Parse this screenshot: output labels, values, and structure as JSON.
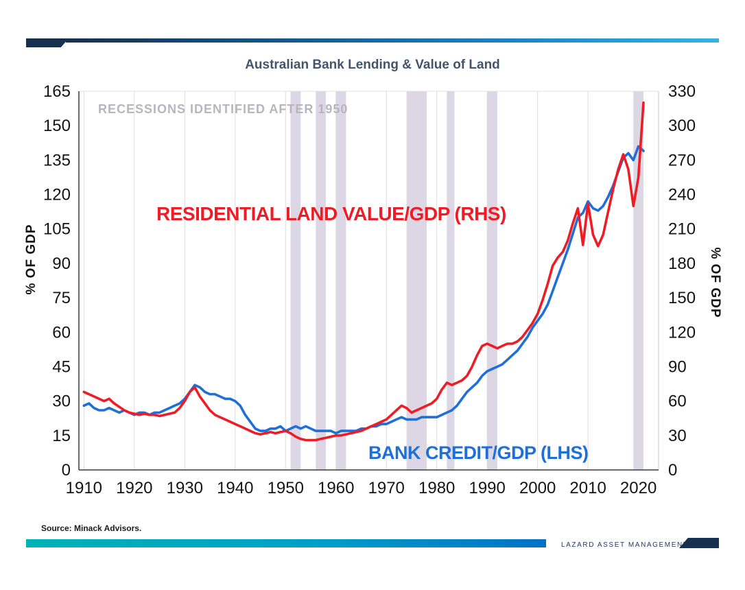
{
  "page": {
    "title": "Australian Bank Lending & Value of Land",
    "source": "Source: Minack Advisors.",
    "brand": "LAZARD ASSET MANAGEMENT"
  },
  "annotations": {
    "recessions": "RECESSIONS IDENTIFIED AFTER 1950"
  },
  "chart_data": {
    "type": "line",
    "title": "Australian Bank Lending & Value of Land",
    "x_range": [
      1909,
      2024
    ],
    "x_ticks": [
      1910,
      1920,
      1930,
      1940,
      1950,
      1960,
      1970,
      1980,
      1990,
      2000,
      2010,
      2020
    ],
    "left_axis": {
      "label": "% OF GDP",
      "range": [
        0,
        165
      ],
      "ticks": [
        165,
        150,
        135,
        120,
        105,
        90,
        75,
        60,
        45,
        30,
        15,
        0
      ]
    },
    "right_axis": {
      "label": "% OF GDP",
      "range": [
        0,
        330
      ],
      "ticks": [
        330,
        300,
        270,
        240,
        210,
        180,
        150,
        120,
        90,
        60,
        30,
        0
      ]
    },
    "grid": "vertical-decades",
    "legend": "inline-labels",
    "band_color": "#ddd6e5",
    "recession_bands": [
      [
        1951,
        1953
      ],
      [
        1956,
        1958
      ],
      [
        1960,
        1962
      ],
      [
        1974,
        1978
      ],
      [
        1982,
        1983.5
      ],
      [
        1990,
        1992
      ],
      [
        2019,
        2021
      ]
    ],
    "series": [
      {
        "name": "BANK CREDIT/GDP (LHS)",
        "axis": "left",
        "color": "#1e6fd8",
        "x_start": 1910,
        "x_step": 1,
        "values": [
          28,
          29,
          27,
          26,
          26,
          27,
          26,
          25,
          26,
          25,
          24,
          25,
          25,
          24,
          25,
          25,
          26,
          27,
          28,
          29,
          31,
          34,
          37,
          36,
          34,
          33,
          33,
          32,
          31,
          31,
          30,
          28,
          24,
          21,
          18,
          17,
          17,
          18,
          18,
          19,
          17,
          18,
          19,
          18,
          19,
          18,
          17,
          17,
          17,
          17,
          16,
          17,
          17,
          17,
          17,
          18,
          18,
          19,
          19,
          20,
          20,
          21,
          22,
          23,
          22,
          22,
          22,
          23,
          23,
          23,
          23,
          24,
          25,
          26,
          28,
          31,
          34,
          36,
          38,
          41,
          43,
          44,
          45,
          46,
          48,
          50,
          52,
          55,
          58,
          62,
          65,
          68,
          72,
          78,
          84,
          90,
          96,
          103,
          110,
          112,
          117,
          114,
          113,
          115,
          119,
          124,
          130,
          136,
          138,
          135,
          141,
          139
        ]
      },
      {
        "name": "RESIDENTIAL LAND VALUE/GDP (RHS)",
        "axis": "right",
        "color": "#ee1c25",
        "x_start": 1910,
        "x_step": 1,
        "values": [
          68,
          66,
          64,
          62,
          60,
          62,
          58,
          55,
          52,
          50,
          49,
          48,
          49,
          48,
          48,
          47,
          48,
          49,
          50,
          54,
          60,
          68,
          72,
          64,
          58,
          52,
          48,
          46,
          44,
          42,
          40,
          38,
          36,
          34,
          32,
          31,
          32,
          33,
          32,
          33,
          34,
          32,
          29,
          27,
          26,
          26,
          26,
          27,
          28,
          29,
          30,
          30,
          31,
          32,
          33,
          34,
          36,
          38,
          40,
          42,
          44,
          48,
          52,
          56,
          54,
          50,
          52,
          54,
          56,
          58,
          62,
          70,
          76,
          74,
          76,
          78,
          82,
          90,
          100,
          108,
          110,
          108,
          106,
          108,
          110,
          110,
          112,
          116,
          122,
          128,
          136,
          148,
          162,
          178,
          185,
          190,
          200,
          215,
          228,
          196,
          232,
          205,
          195,
          205,
          225,
          245,
          262,
          275,
          262,
          230,
          255,
          320
        ]
      }
    ]
  }
}
